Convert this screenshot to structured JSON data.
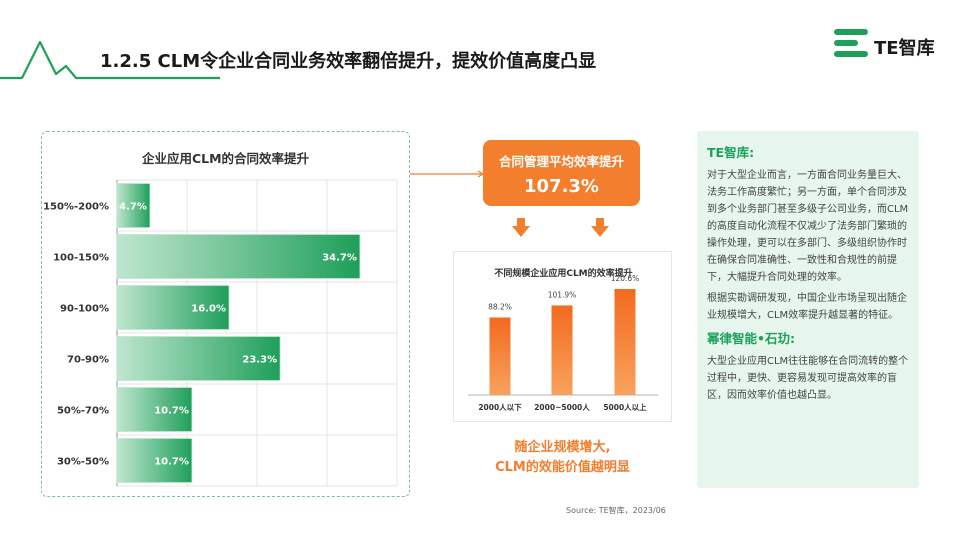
{
  "header": {
    "title": "1.2.5 CLM令企业合同业务效率翻倍提升，提效价值高度凸显"
  },
  "logo": {
    "text": "TE智库"
  },
  "left_chart": {
    "title": "企业应用CLM的合同效率提升",
    "rows": [
      {
        "label": "150%-200%",
        "value_label": "4.7%"
      },
      {
        "label": "100-150%",
        "value_label": "34.7%"
      },
      {
        "label": "90-100%",
        "value_label": "16.0%"
      },
      {
        "label": "70-90%",
        "value_label": "23.3%"
      },
      {
        "label": "50%-70%",
        "value_label": "10.7%"
      },
      {
        "label": "30%-50%",
        "value_label": "10.7%"
      }
    ]
  },
  "kpi": {
    "label": "合同管理平均效率提升",
    "value": "107.3%"
  },
  "mid_chart": {
    "title": "不同规模企业应用CLM的效率提升",
    "bars": [
      {
        "label": "2000人以下",
        "value_label": "88.2%"
      },
      {
        "label": "2000~5000人",
        "value_label": "101.9%"
      },
      {
        "label": "5000人以上",
        "value_label": "120.6%"
      }
    ]
  },
  "mid_caption": {
    "line1": "随企业规模增大,",
    "line2": "CLM的效能价值越明显"
  },
  "source": "Source: TE智库，2023/06",
  "side_card": {
    "heading1": "TE智库:",
    "para1": "对于大型企业而言，一方面合同业务量巨大、法务工作高度繁忙；另一方面，单个合同涉及到多个业务部门甚至多级子公司业务，而CLM的高度自动化流程不仅减少了法务部门繁琐的操作处理，更可以在多部门、多级组织协作时在确保合同准确性、一致性和合规性的前提下，大幅提升合同处理的效率。",
    "para2": "根据实勘调研发现，中国企业市场呈现出随企业规模增大，CLM效率提升越显著的特征。",
    "heading2": "幂律智能•石玏:",
    "para3": "大型企业应用CLM往往能够在合同流转的整个过程中，更快、更容易发现可提高效率的盲区，因而效率价值也越凸显。"
  },
  "colors": {
    "brand_green": "#1fa05a",
    "bar_green_dark": "#1f9f5a",
    "bar_green_light": "#bfe6cf",
    "accent_orange": "#f37e2d",
    "card_bg": "#e6f6ec"
  },
  "chart_data": [
    {
      "type": "bar",
      "orientation": "horizontal",
      "title": "企业应用CLM的合同效率提升",
      "categories": [
        "150%-200%",
        "100-150%",
        "90-100%",
        "70-90%",
        "50%-70%",
        "30%-50%"
      ],
      "values": [
        4.7,
        34.7,
        16.0,
        23.3,
        10.7,
        10.7
      ],
      "unit": "%",
      "xlim": [
        0,
        40
      ],
      "grid": true,
      "xlabel": "",
      "ylabel": ""
    },
    {
      "type": "bar",
      "orientation": "vertical",
      "title": "不同规模企业应用CLM的效率提升",
      "categories": [
        "2000人以下",
        "2000~5000人",
        "5000人以上"
      ],
      "values": [
        88.2,
        101.9,
        120.6
      ],
      "unit": "%",
      "ylim": [
        0,
        140
      ],
      "grid": false,
      "xlabel": "",
      "ylabel": ""
    }
  ]
}
